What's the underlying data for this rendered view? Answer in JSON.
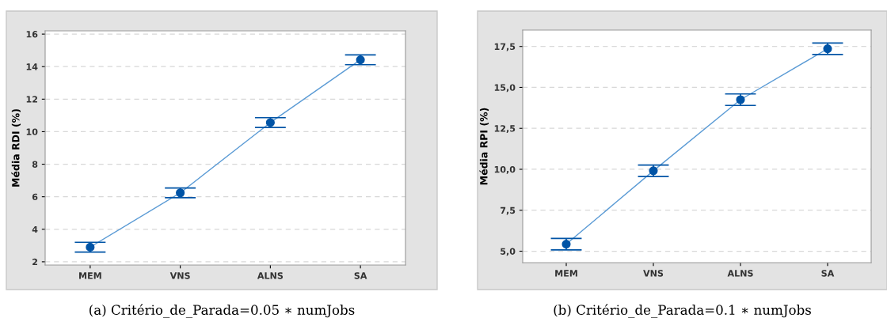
{
  "chart_data": [
    {
      "type": "line",
      "title": "(a) Critério_de_Parada=0.05 ∗ numJobs",
      "ylabel": "Média RDI (%)",
      "categories": [
        "MEM",
        "VNS",
        "ALNS",
        "SA"
      ],
      "series": [
        {
          "color": "#0054a6",
          "values": [
            2.9,
            6.24,
            10.56,
            14.42
          ],
          "errors": [
            0.3,
            0.3,
            0.3,
            0.3
          ]
        }
      ],
      "ylim": [
        1.8,
        16.2
      ],
      "yticks": [
        2,
        4,
        6,
        8,
        10,
        12,
        14,
        16
      ],
      "grid": "y",
      "marker": "circle",
      "line_style": "solid"
    },
    {
      "type": "line",
      "title": "(b) Critério_de_Parada=0.1 ∗ numJobs",
      "ylabel": "Média RPI (%)",
      "categories": [
        "MEM",
        "VNS",
        "ALNS",
        "SA"
      ],
      "series": [
        {
          "color": "#0054a6",
          "values": [
            5.43,
            9.91,
            14.25,
            17.36
          ],
          "errors": [
            0.35,
            0.35,
            0.35,
            0.35
          ]
        }
      ],
      "ylim": [
        4.3,
        18.5
      ],
      "yticks": [
        {
          "value": 5,
          "label": "5,0"
        },
        {
          "value": 7.5,
          "label": "7,5"
        },
        {
          "value": 10,
          "label": "10,0"
        },
        {
          "value": 12.5,
          "label": "12,5"
        },
        {
          "value": 15,
          "label": "15,0"
        },
        {
          "value": 17.5,
          "label": "17,5"
        }
      ],
      "grid": "y",
      "marker": "circle",
      "line_style": "solid"
    }
  ]
}
